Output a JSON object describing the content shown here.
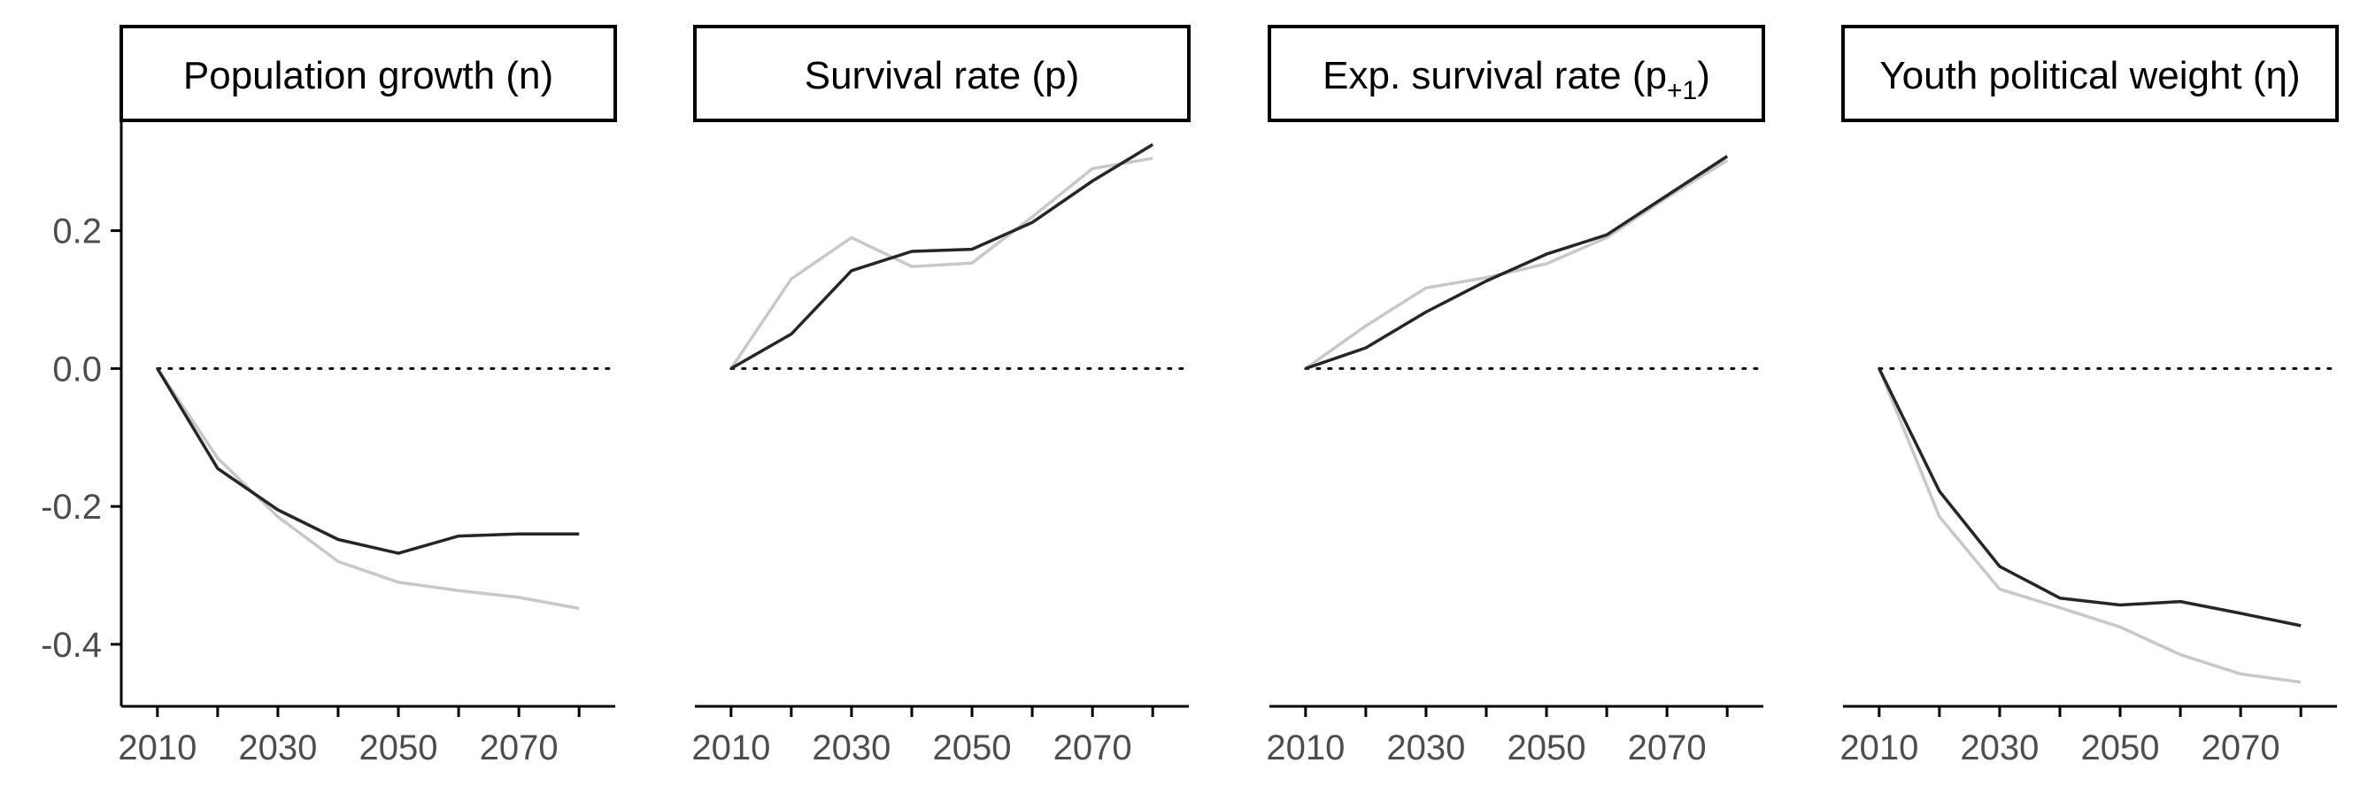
{
  "colors": {
    "series_dark": "#262626",
    "series_light": "#c8c8c8",
    "axis": "#000000",
    "tick_text": "#4d4d4d",
    "reference_line": "#000000"
  },
  "chart_data": {
    "type": "line",
    "layout": "four facets side by side, shared y axis",
    "y_ticks": [
      "0.2",
      "0.0",
      "-0.2",
      "-0.4"
    ],
    "y_tick_values": [
      0.2,
      0.0,
      -0.2,
      -0.4
    ],
    "x_ticks": [
      "2010",
      "2030",
      "2050",
      "2070"
    ],
    "x_tick_values": [
      2010,
      2030,
      2050,
      2070
    ],
    "ylim": [
      -0.49,
      0.36
    ],
    "xlim": [
      2004,
      2086
    ],
    "reference_line": {
      "y": 0.0,
      "style": "dotted"
    },
    "grid": false,
    "legend": "none",
    "x": [
      2010,
      2020,
      2030,
      2040,
      2050,
      2060,
      2070,
      2080
    ],
    "panels": [
      {
        "strip": {
          "main": "Population growth (n)"
        },
        "series": [
          {
            "color": "series_light",
            "values": [
              0.0,
              -0.13,
              -0.215,
              -0.28,
              -0.31,
              -0.322,
              -0.332,
              -0.348
            ]
          },
          {
            "color": "series_dark",
            "values": [
              0.0,
              -0.145,
              -0.205,
              -0.248,
              -0.268,
              -0.243,
              -0.24,
              -0.24
            ]
          }
        ]
      },
      {
        "strip": {
          "main": "Survival rate (p)"
        },
        "series": [
          {
            "color": "series_light",
            "values": [
              0.0,
              0.13,
              0.19,
              0.148,
              0.153,
              0.22,
              0.29,
              0.305
            ]
          },
          {
            "color": "series_dark",
            "values": [
              0.0,
              0.05,
              0.142,
              0.17,
              0.173,
              0.212,
              0.272,
              0.325
            ]
          }
        ]
      },
      {
        "strip": {
          "main": "Exp. survival rate (p",
          "sub": "+1",
          "tail": ")"
        },
        "series": [
          {
            "color": "series_light",
            "values": [
              0.0,
              0.062,
              0.117,
              0.132,
              0.152,
              0.19,
              0.248,
              0.302
            ]
          },
          {
            "color": "series_dark",
            "values": [
              0.0,
              0.03,
              0.082,
              0.127,
              0.166,
              0.194,
              0.251,
              0.308
            ]
          }
        ]
      },
      {
        "strip": {
          "main": "Youth political weight (η)"
        },
        "series": [
          {
            "color": "series_light",
            "values": [
              0.0,
              -0.215,
              -0.32,
              -0.347,
              -0.375,
              -0.415,
              -0.443,
              -0.455
            ]
          },
          {
            "color": "series_dark",
            "values": [
              0.0,
              -0.178,
              -0.287,
              -0.333,
              -0.343,
              -0.338,
              -0.355,
              -0.373
            ]
          }
        ]
      }
    ]
  }
}
